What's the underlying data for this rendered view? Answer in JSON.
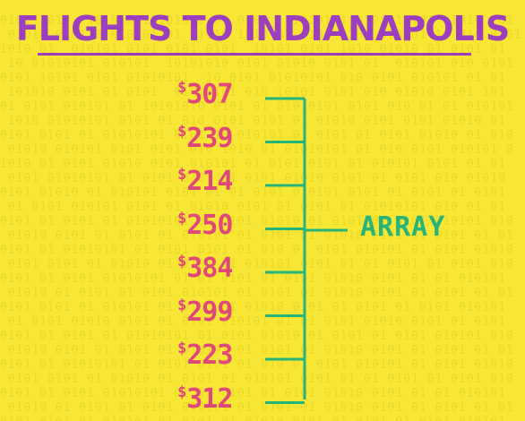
{
  "title": "FLIGHTS TO INDIANAPOLIS",
  "currency": "$",
  "prices": [
    "307",
    "239",
    "214",
    "250",
    "384",
    "299",
    "223",
    "312"
  ],
  "bracket_label": "ARRAY",
  "colors": {
    "background": "#f7e633",
    "title": "#9b3fbf",
    "price": "#e0477a",
    "line": "#27b47a"
  }
}
